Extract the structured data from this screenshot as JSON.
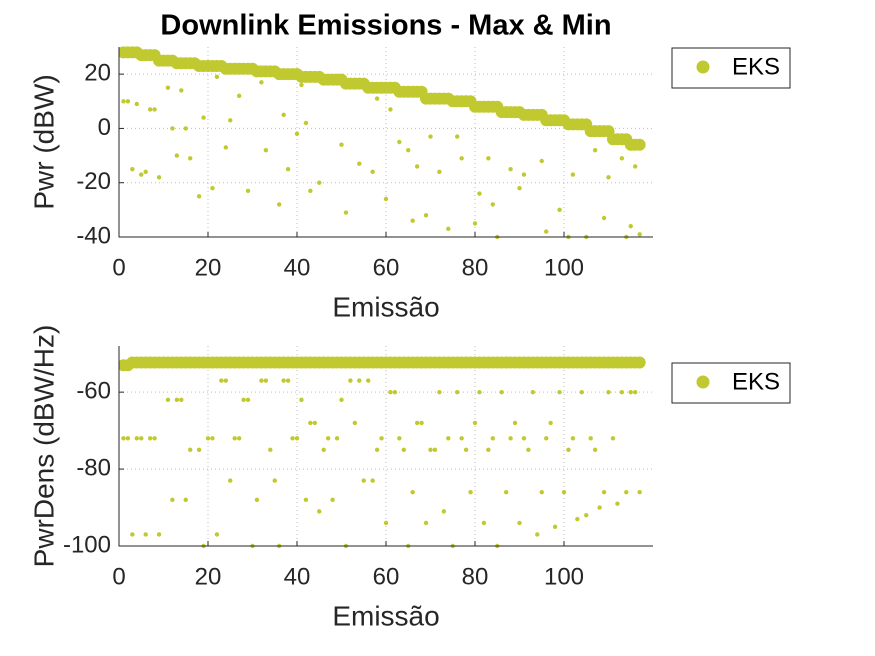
{
  "chart_data": [
    {
      "type": "scatter",
      "title": "Downlink Emissions - Max & Min",
      "xlabel": "Emissão",
      "ylabel": "Pwr (dBW)",
      "xlim": [
        0,
        120
      ],
      "ylim": [
        -40,
        30
      ],
      "xticks": [
        0,
        20,
        40,
        60,
        80,
        100
      ],
      "yticks": [
        -40,
        -20,
        0,
        20
      ],
      "grid": true,
      "legend": "outside-right",
      "series": [
        {
          "name": "EKS",
          "color": "#c0c92f",
          "x": [
            1,
            2,
            3,
            4,
            5,
            6,
            7,
            8,
            9,
            10,
            11,
            12,
            13,
            14,
            15,
            16,
            17,
            18,
            19,
            20,
            21,
            22,
            23,
            24,
            25,
            26,
            27,
            28,
            29,
            30,
            31,
            32,
            33,
            34,
            35,
            36,
            37,
            38,
            39,
            40,
            41,
            42,
            43,
            44,
            45,
            46,
            47,
            48,
            49,
            50,
            51,
            52,
            53,
            54,
            55,
            56,
            57,
            58,
            59,
            60,
            61,
            62,
            63,
            64,
            65,
            66,
            67,
            68,
            69,
            70,
            71,
            72,
            73,
            74,
            75,
            76,
            77,
            78,
            79,
            80,
            81,
            82,
            83,
            84,
            85,
            86,
            87,
            88,
            89,
            90,
            91,
            92,
            93,
            94,
            95,
            96,
            97,
            98,
            99,
            100,
            101,
            102,
            103,
            104,
            105,
            106,
            107,
            108,
            109,
            110,
            111,
            112,
            113,
            114,
            115,
            116,
            117
          ],
          "values": [
            28,
            28,
            28,
            28,
            27,
            27,
            27,
            27,
            25,
            25,
            25,
            25,
            24,
            24,
            24,
            24,
            24,
            23,
            23,
            23,
            23,
            23,
            23,
            22,
            22,
            22,
            22,
            22,
            22,
            22,
            21,
            21,
            21,
            21,
            21,
            20,
            20,
            20,
            20,
            20,
            19,
            19,
            19,
            19,
            19,
            18,
            18,
            18,
            18,
            18,
            16.5,
            16.5,
            16.5,
            16.5,
            16.5,
            15,
            15,
            15,
            15,
            15,
            15,
            15,
            13.5,
            13.5,
            13.5,
            13.5,
            13.5,
            13.5,
            11,
            11,
            11,
            11,
            11,
            11,
            10,
            10,
            10,
            10,
            10,
            8,
            8,
            8,
            8,
            8,
            8,
            6,
            6,
            6,
            6,
            6,
            5,
            5,
            5,
            5,
            5,
            3,
            3,
            3,
            3,
            3,
            1.5,
            1.5,
            1.5,
            1.5,
            1.5,
            -1,
            -1,
            -1,
            -1,
            -1,
            -4,
            -4,
            -4,
            -4,
            -6,
            -6,
            -6
          ],
          "min_values": [
            10,
            10,
            -15,
            9,
            -17,
            -16,
            7,
            7,
            -18,
            null,
            15,
            0,
            -10,
            14,
            0,
            -11,
            null,
            -25,
            4,
            null,
            -22,
            19,
            null,
            -7,
            3,
            null,
            12,
            null,
            -23,
            null,
            null,
            17,
            -8,
            null,
            null,
            -28,
            5,
            -15,
            null,
            -2,
            16,
            2,
            -23,
            null,
            -20,
            null,
            null,
            null,
            null,
            -6,
            -31,
            null,
            null,
            -13,
            null,
            null,
            -16,
            11,
            null,
            -26,
            7,
            null,
            -5,
            null,
            -8,
            -34,
            -14,
            null,
            -32,
            -3,
            null,
            -16,
            null,
            -37,
            null,
            -3,
            -11,
            null,
            null,
            -35,
            -24,
            null,
            -11,
            -28,
            -40,
            null,
            null,
            -15,
            null,
            -22,
            -17,
            null,
            null,
            null,
            -12,
            -38,
            null,
            null,
            -30,
            null,
            -40,
            -17,
            null,
            null,
            -40,
            null,
            -8,
            null,
            -33,
            -18,
            null,
            null,
            -11,
            -40,
            -36,
            -14,
            -39
          ]
        }
      ]
    },
    {
      "type": "scatter",
      "xlabel": "Emissão",
      "ylabel": "PwrDens (dBW/Hz)",
      "xlim": [
        0,
        120
      ],
      "ylim": [
        -100,
        -48
      ],
      "xticks": [
        0,
        20,
        40,
        60,
        80,
        100
      ],
      "yticks": [
        -100,
        -80,
        -60
      ],
      "grid": true,
      "legend": "outside-right",
      "series": [
        {
          "name": "EKS",
          "color": "#c0c92f",
          "x": [
            1,
            2,
            3,
            4,
            5,
            6,
            7,
            8,
            9,
            10,
            11,
            12,
            13,
            14,
            15,
            16,
            17,
            18,
            19,
            20,
            21,
            22,
            23,
            24,
            25,
            26,
            27,
            28,
            29,
            30,
            31,
            32,
            33,
            34,
            35,
            36,
            37,
            38,
            39,
            40,
            41,
            42,
            43,
            44,
            45,
            46,
            47,
            48,
            49,
            50,
            51,
            52,
            53,
            54,
            55,
            56,
            57,
            58,
            59,
            60,
            61,
            62,
            63,
            64,
            65,
            66,
            67,
            68,
            69,
            70,
            71,
            72,
            73,
            74,
            75,
            76,
            77,
            78,
            79,
            80,
            81,
            82,
            83,
            84,
            85,
            86,
            87,
            88,
            89,
            90,
            91,
            92,
            93,
            94,
            95,
            96,
            97,
            98,
            99,
            100,
            101,
            102,
            103,
            104,
            105,
            106,
            107,
            108,
            109,
            110,
            111,
            112,
            113,
            114,
            115,
            116,
            117
          ],
          "values": [
            -53,
            -53,
            -52.3,
            -52.3,
            -52.3,
            -52.3,
            -52.3,
            -52.3,
            -52.3,
            -52.3,
            -52.3,
            -52.3,
            -52.3,
            -52.3,
            -52.3,
            -52.3,
            -52.3,
            -52.3,
            -52.3,
            -52.3,
            -52.3,
            -52.3,
            -52.3,
            -52.3,
            -52.3,
            -52.3,
            -52.3,
            -52.3,
            -52.3,
            -52.3,
            -52.3,
            -52.3,
            -52.3,
            -52.3,
            -52.3,
            -52.3,
            -52.3,
            -52.3,
            -52.3,
            -52.3,
            -52.3,
            -52.3,
            -52.3,
            -52.3,
            -52.3,
            -52.3,
            -52.3,
            -52.3,
            -52.3,
            -52.3,
            -52.3,
            -52.3,
            -52.3,
            -52.3,
            -52.3,
            -52.3,
            -52.3,
            -52.3,
            -52.3,
            -52.3,
            -52.3,
            -52.3,
            -52.3,
            -52.3,
            -52.3,
            -52.3,
            -52.3,
            -52.3,
            -52.3,
            -52.3,
            -52.3,
            -52.3,
            -52.3,
            -52.3,
            -52.3,
            -52.3,
            -52.3,
            -52.3,
            -52.3,
            -52.3,
            -52.3,
            -52.3,
            -52.3,
            -52.3,
            -52.3,
            -52.3,
            -52.3,
            -52.3,
            -52.3,
            -52.3,
            -52.3,
            -52.3,
            -52.3,
            -52.3,
            -52.3,
            -52.3,
            -52.3,
            -52.3,
            -52.3,
            -52.3,
            -52.3,
            -52.3,
            -52.3,
            -52.3,
            -52.3,
            -52.3,
            -52.3,
            -52.3,
            -52.3,
            -52.3,
            -52.3,
            -52.3,
            -52.3,
            -52.3,
            -52.3,
            -52.3,
            -52.3
          ],
          "min_values": [
            -72,
            -72,
            -97,
            -72,
            -72,
            -97,
            -72,
            -72,
            -97,
            null,
            -62,
            -88,
            -62,
            -62,
            -88,
            -75,
            null,
            -75,
            -100,
            -72,
            -72,
            -97,
            -57,
            -57,
            -83,
            -72,
            -72,
            -62,
            -62,
            -100,
            -88,
            -57,
            -57,
            -75,
            -83,
            -100,
            -57,
            -57,
            -72,
            -72,
            -62,
            -88,
            -68,
            -68,
            -91,
            -75,
            -72,
            -88,
            -72,
            -62,
            -100,
            -57,
            -68,
            -57,
            -83,
            -57,
            -83,
            -75,
            -72,
            -94,
            -60,
            -60,
            -72,
            -75,
            -100,
            -86,
            -68,
            -68,
            -94,
            -75,
            -75,
            -60,
            -91,
            -72,
            -100,
            -60,
            -72,
            -75,
            -86,
            -68,
            -60,
            -94,
            -75,
            -72,
            -100,
            -60,
            -86,
            -72,
            -68,
            -94,
            -72,
            -75,
            -60,
            -97,
            -86,
            -72,
            -68,
            -95,
            -60,
            -86,
            -75,
            -72,
            -93,
            -60,
            -92,
            -72,
            -75,
            -90,
            -86,
            -60,
            -72,
            -89,
            -60,
            -86,
            -60,
            -60,
            -86
          ]
        }
      ]
    }
  ]
}
